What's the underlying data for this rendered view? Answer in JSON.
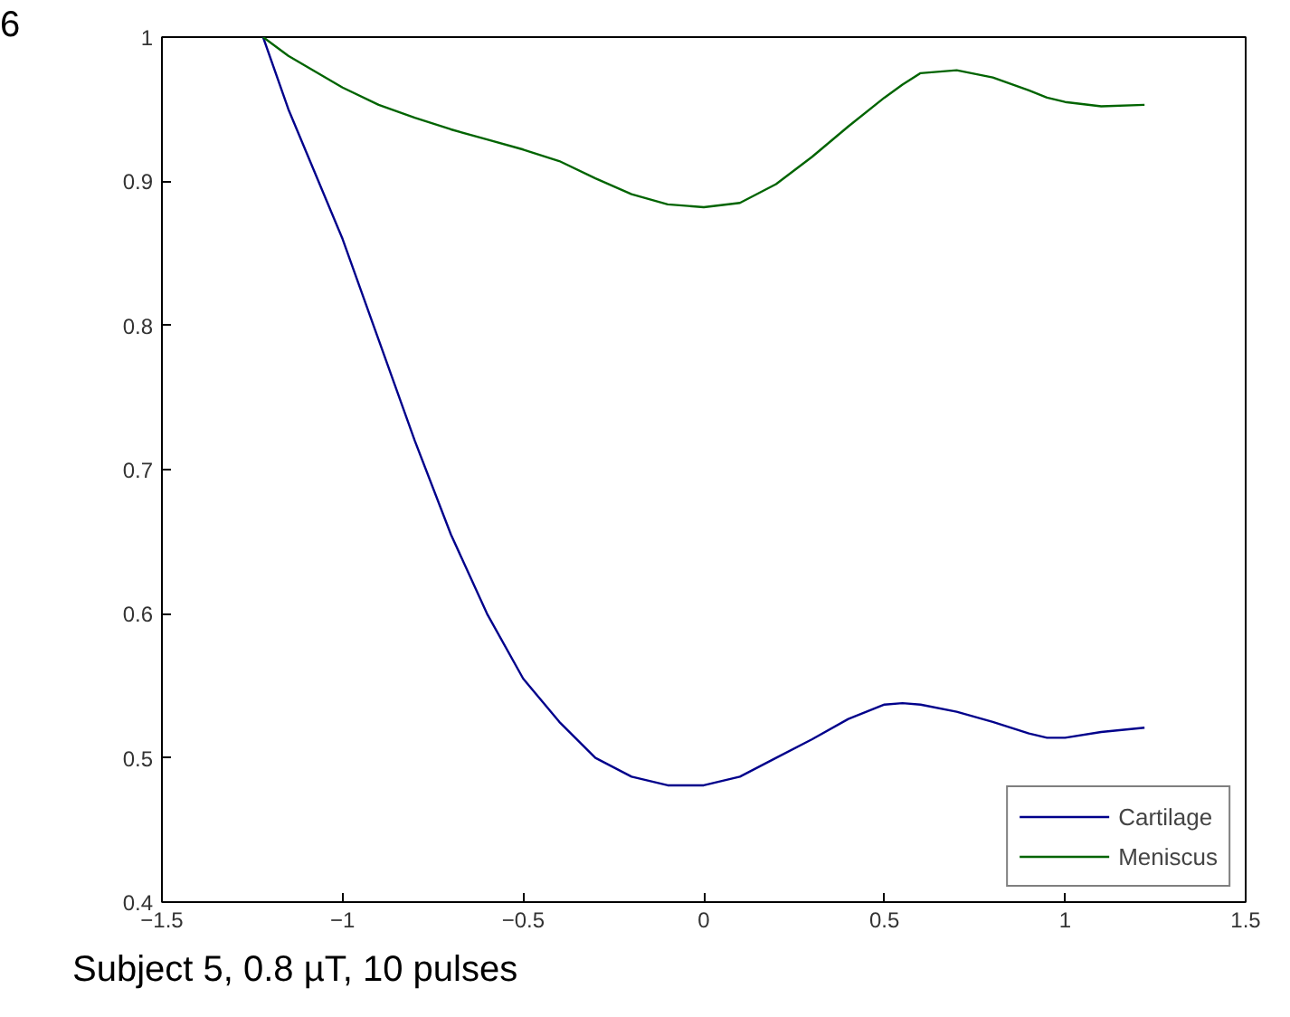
{
  "chart_data": {
    "type": "line",
    "annotations": [
      "6",
      "Subject 5, 0.8 µT, 10 pulses"
    ],
    "x": [
      -1.22,
      -1.15,
      -1.0,
      -0.9,
      -0.8,
      -0.7,
      -0.6,
      -0.5,
      -0.4,
      -0.3,
      -0.2,
      -0.1,
      0.0,
      0.1,
      0.2,
      0.3,
      0.4,
      0.5,
      0.55,
      0.6,
      0.7,
      0.8,
      0.9,
      0.95,
      1.0,
      1.1,
      1.22
    ],
    "series": [
      {
        "name": "Cartilage",
        "color": "#00008b",
        "values": [
          1.0,
          0.95,
          0.86,
          0.79,
          0.72,
          0.655,
          0.6,
          0.555,
          0.525,
          0.5,
          0.487,
          0.481,
          0.481,
          0.487,
          0.5,
          0.513,
          0.527,
          0.537,
          0.538,
          0.537,
          0.532,
          0.525,
          0.517,
          0.514,
          0.514,
          0.518,
          0.521
        ]
      },
      {
        "name": "Meniscus",
        "color": "#006400",
        "values": [
          1.0,
          0.987,
          0.965,
          0.953,
          0.944,
          0.936,
          0.929,
          0.922,
          0.914,
          0.902,
          0.891,
          0.884,
          0.882,
          0.885,
          0.898,
          0.917,
          0.938,
          0.958,
          0.967,
          0.975,
          0.977,
          0.972,
          0.963,
          0.958,
          0.955,
          0.952,
          0.953
        ]
      }
    ],
    "xlim": [
      -1.5,
      1.5
    ],
    "ylim": [
      0.4,
      1
    ],
    "xticks": [
      -1.5,
      -1,
      -0.5,
      0,
      0.5,
      1,
      1.5
    ],
    "yticks": [
      0.4,
      0.5,
      0.6,
      0.7,
      0.8,
      0.9,
      1
    ],
    "grid": false,
    "legend": "bottom right",
    "line_style": "solid"
  }
}
